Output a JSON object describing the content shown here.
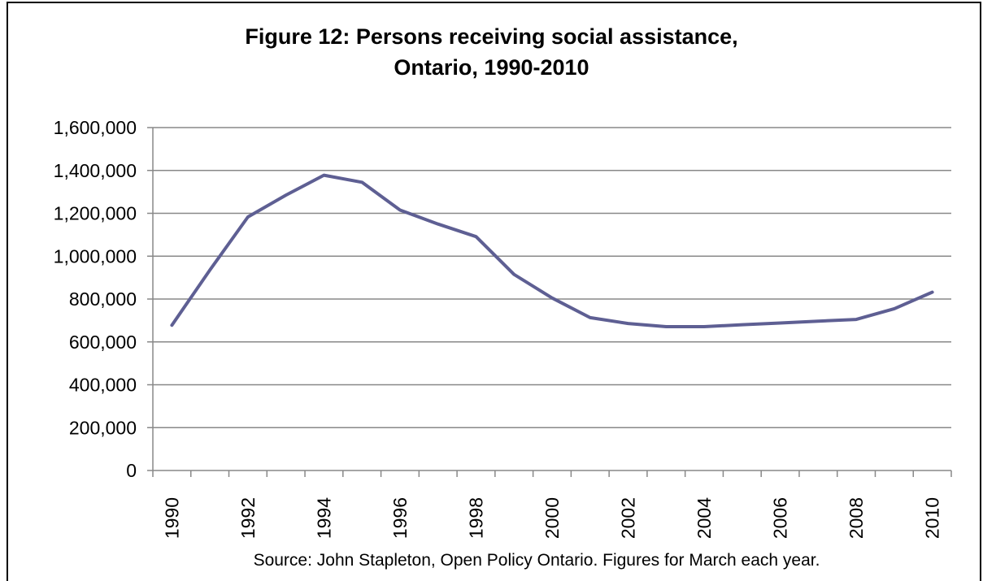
{
  "chart_data": {
    "type": "line",
    "title_lines": [
      "Figure 12: Persons receiving social assistance,",
      "Ontario, 1990-2010"
    ],
    "xlabel": "",
    "ylabel": "",
    "x": [
      1990,
      1991,
      1992,
      1993,
      1994,
      1995,
      1996,
      1997,
      1998,
      1999,
      2000,
      2001,
      2002,
      2003,
      2004,
      2005,
      2006,
      2007,
      2008,
      2009,
      2010
    ],
    "x_tick_labels": [
      "1990",
      "1992",
      "1994",
      "1996",
      "1998",
      "2000",
      "2002",
      "2004",
      "2006",
      "2008",
      "2010"
    ],
    "y_tick_values": [
      0,
      200000,
      400000,
      600000,
      800000,
      1000000,
      1200000,
      1400000,
      1600000
    ],
    "y_tick_labels": [
      "0",
      "200,000",
      "400,000",
      "600,000",
      "800,000",
      "1,000,000",
      "1,200,000",
      "1,400,000",
      "1,600,000"
    ],
    "ylim": [
      0,
      1600000
    ],
    "grid": true,
    "legend": "none",
    "series": [
      {
        "color": "#5E5F93",
        "values": [
          678000,
          935000,
          1183000,
          1285000,
          1378000,
          1345000,
          1215000,
          1150000,
          1091000,
          915000,
          805000,
          713000,
          686000,
          671000,
          671000,
          680000,
          688000,
          697000,
          705000,
          755000,
          832000
        ]
      }
    ],
    "note": "Source: John  Stapleton, Open Policy Ontario. Figures for March each year.",
    "colors": {
      "gridline": "#888888",
      "axis": "#888888",
      "text": "#000000"
    }
  }
}
